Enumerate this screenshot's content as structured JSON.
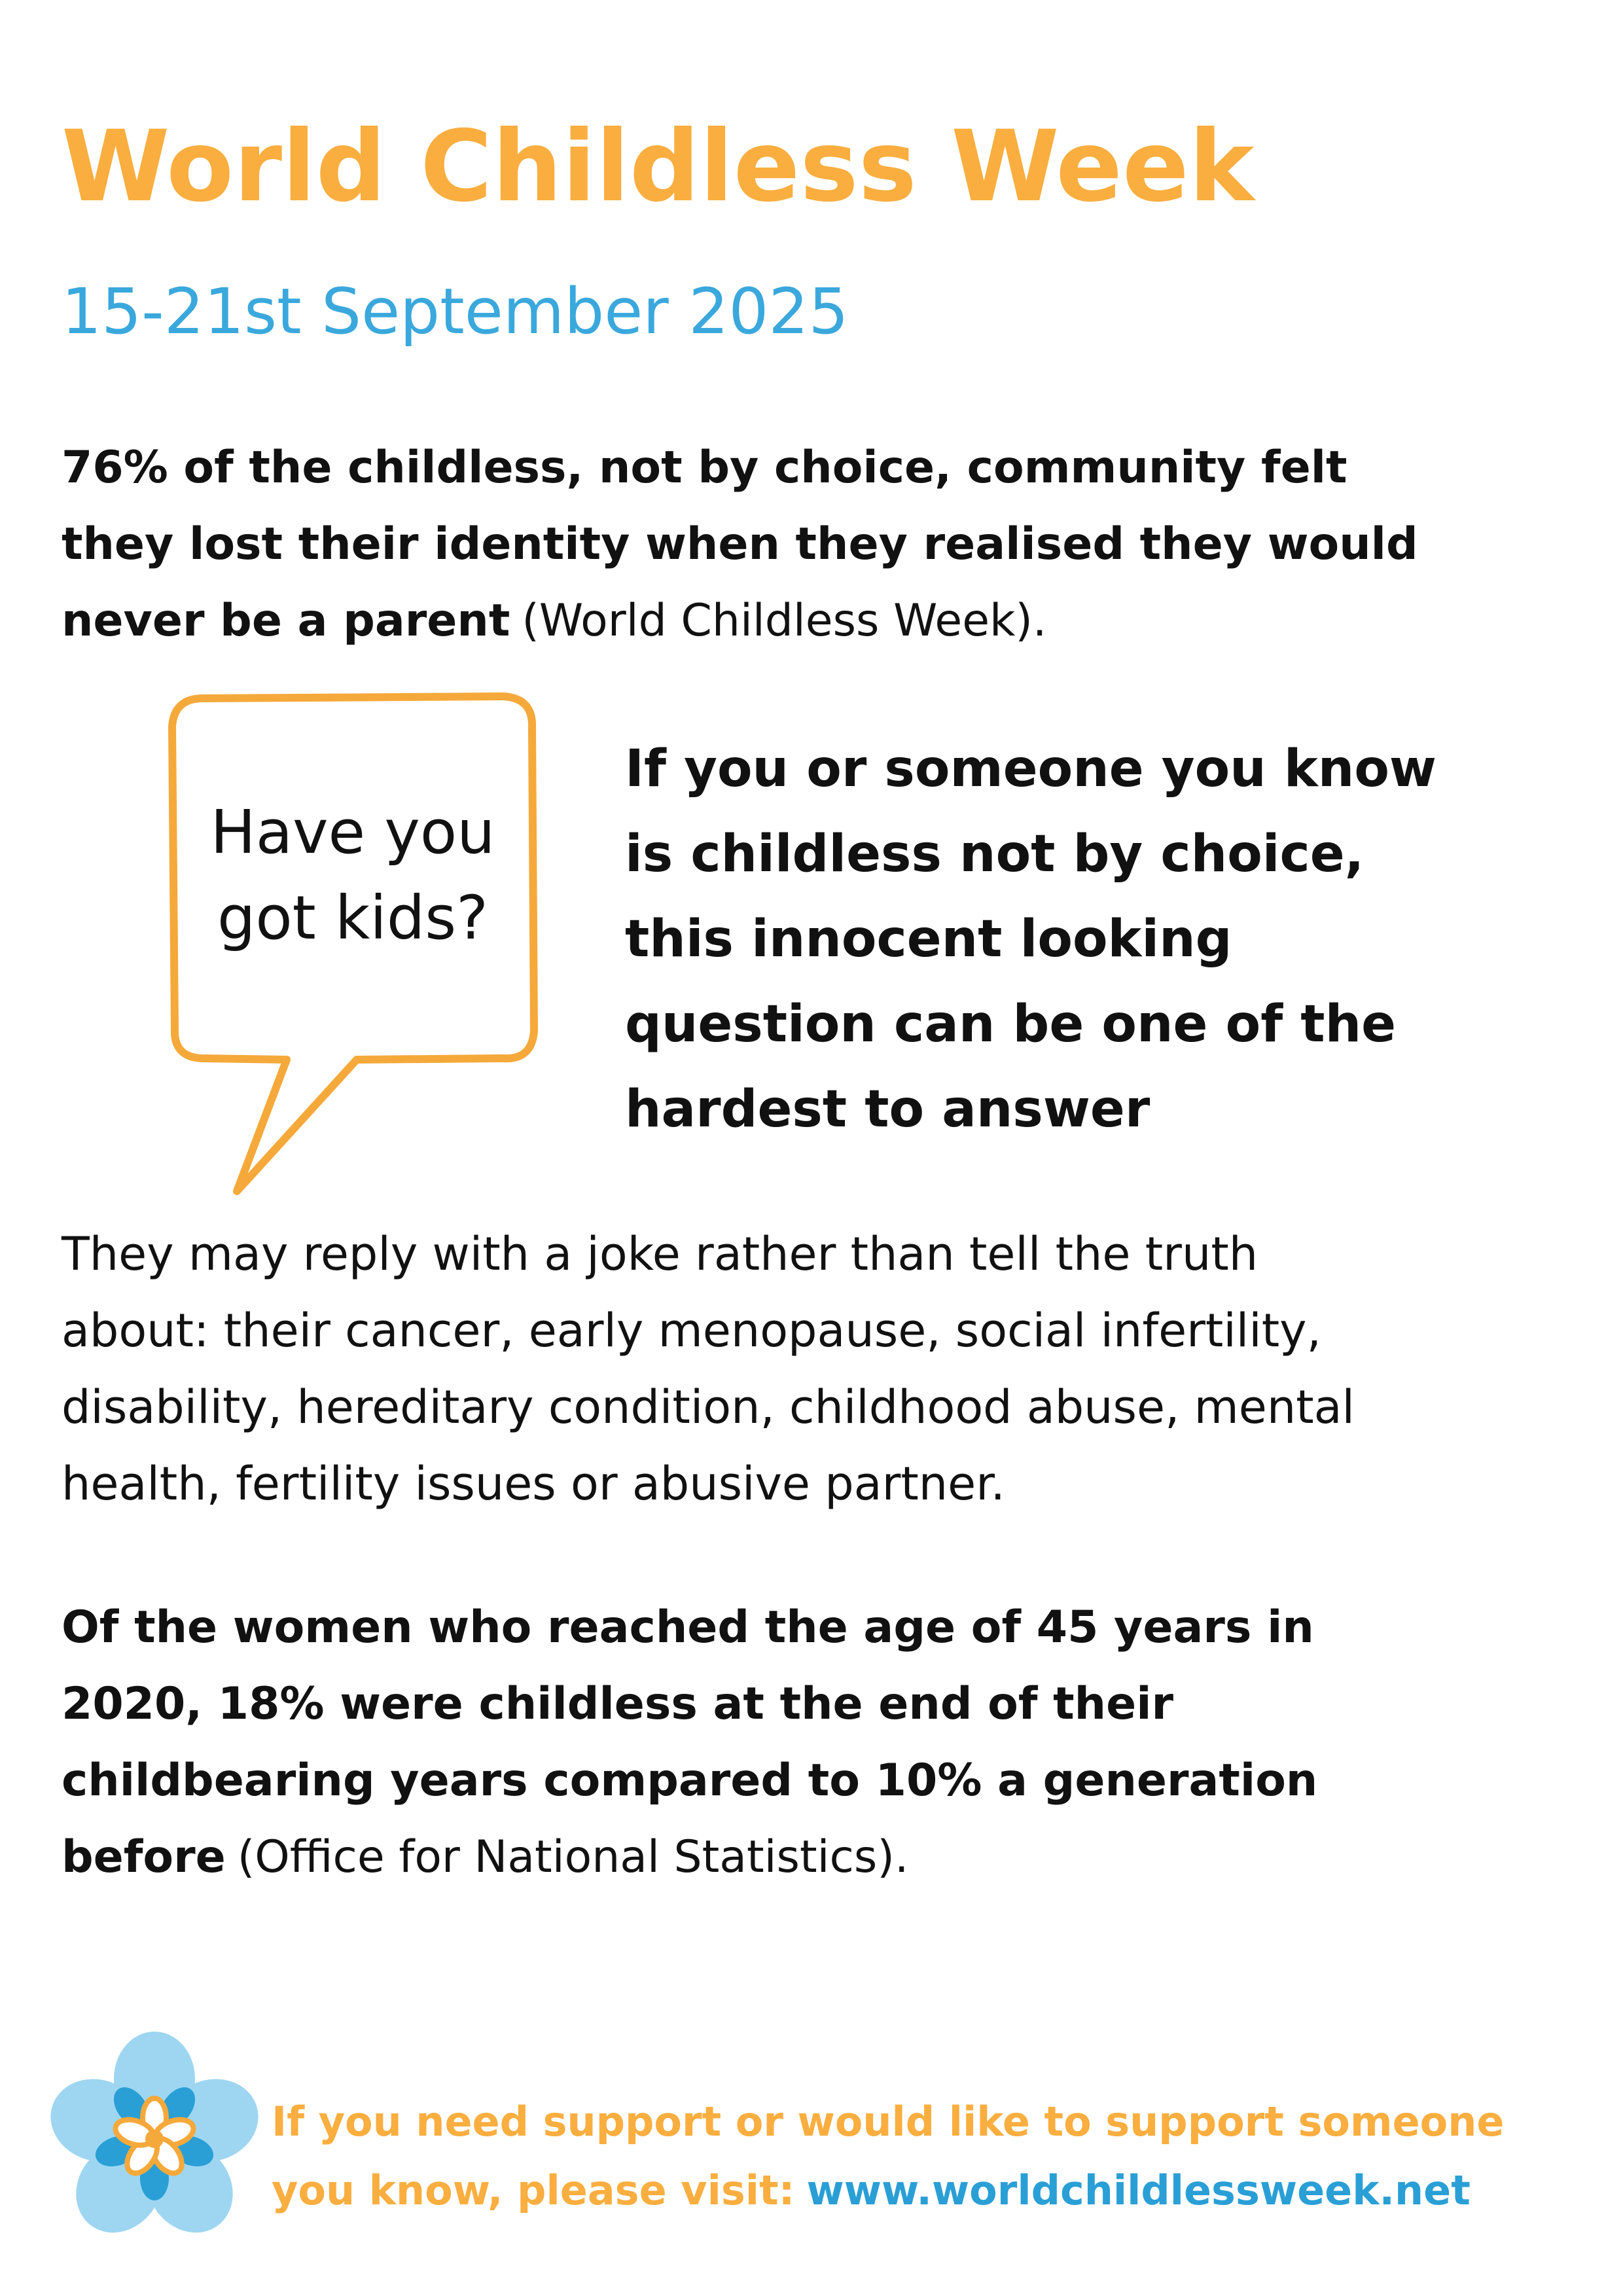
{
  "title": "World Childless Week",
  "subtitle": "15-21st September 2025",
  "intro": {
    "lines": [
      "76% of the childless, not by choice, community felt",
      "they lost their identity when they realised they would",
      "never be a parent"
    ],
    "source": "(World Childless Week)."
  },
  "bubble": {
    "lines": [
      "Have you",
      "got kids?"
    ]
  },
  "callout": {
    "lines": [
      "If you or someone you know",
      "is childless not by choice,",
      "this innocent looking",
      "question can be one of the",
      "hardest to answer"
    ]
  },
  "body": {
    "lines": [
      "They may reply with a joke rather than tell the truth",
      "about: their cancer, early menopause, social infertility,",
      "disability, hereditary condition, childhood abuse, mental",
      "health, fertility issues or abusive partner."
    ]
  },
  "stat": {
    "lines": [
      "Of the women who reached the age of 45 years in",
      "2020, 18% were childless at the end of their",
      "childbearing years compared to 10% a generation",
      "before"
    ],
    "source": "(Office for National Statistics)."
  },
  "footer": {
    "lines": [
      "If you need support or would like to support someone",
      "you know, please visit:"
    ],
    "link": "www.worldchildlessweek.net"
  }
}
